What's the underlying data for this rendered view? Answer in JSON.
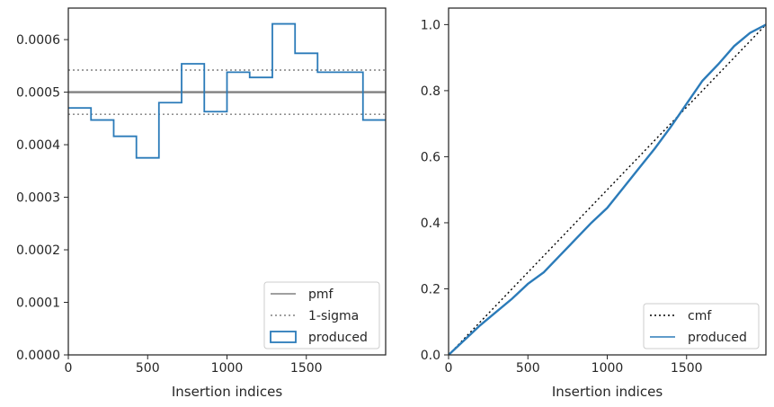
{
  "chart_data": [
    {
      "type": "line",
      "subtype": "histogram-step",
      "xlabel": "Insertion indices",
      "ylabel": "",
      "xlim": [
        0,
        2000
      ],
      "ylim": [
        0,
        0.00066
      ],
      "xticks": [
        0,
        500,
        1000,
        1500
      ],
      "xtick_labels": [
        "0",
        "500",
        "1000",
        "1500"
      ],
      "yticks": [
        0,
        0.0001,
        0.0002,
        0.0003,
        0.0004,
        0.0005,
        0.0006
      ],
      "ytick_labels": [
        "0.0000",
        "0.0001",
        "0.0002",
        "0.0003",
        "0.0004",
        "0.0005",
        "0.0006"
      ],
      "grid": false,
      "legend_position": "lower-right",
      "series": [
        {
          "name": "pmf",
          "style": "solid",
          "color": "#808080",
          "x": [
            0,
            2000
          ],
          "y": [
            0.0005,
            0.0005
          ]
        },
        {
          "name": "1-sigma",
          "style": "dotted",
          "color": "#808080",
          "lines": [
            0.000458,
            0.000542
          ]
        },
        {
          "name": "produced",
          "style": "step",
          "color": "#2b7bb9",
          "bin_edges": [
            0,
            143,
            286,
            429,
            571,
            714,
            857,
            1000,
            1143,
            1286,
            1429,
            1571,
            1714,
            1857,
            2000
          ],
          "values": [
            0.00047,
            0.000447,
            0.000416,
            0.000375,
            0.00048,
            0.000554,
            0.000463,
            0.000538,
            0.000528,
            0.00063,
            0.000574,
            0.000538,
            0.000538,
            0.000447
          ]
        }
      ]
    },
    {
      "type": "line",
      "xlabel": "Insertion indices",
      "ylabel": "",
      "xlim": [
        0,
        2000
      ],
      "ylim": [
        0,
        1.05
      ],
      "xticks": [
        0,
        500,
        1000,
        1500
      ],
      "xtick_labels": [
        "0",
        "500",
        "1000",
        "1500"
      ],
      "yticks": [
        0,
        0.2,
        0.4,
        0.6,
        0.8,
        1.0
      ],
      "ytick_labels": [
        "0.0",
        "0.2",
        "0.4",
        "0.6",
        "0.8",
        "1.0"
      ],
      "grid": false,
      "legend_position": "lower-right",
      "series": [
        {
          "name": "cmf",
          "style": "dotted",
          "color": "#000000",
          "x": [
            0,
            2000
          ],
          "y": [
            0,
            1
          ]
        },
        {
          "name": "produced",
          "style": "solid",
          "color": "#2b7bb9",
          "x": [
            0,
            100,
            200,
            300,
            400,
            500,
            600,
            700,
            800,
            900,
            1000,
            1100,
            1200,
            1300,
            1400,
            1500,
            1600,
            1700,
            1800,
            1900,
            2000
          ],
          "y": [
            0,
            0.045,
            0.09,
            0.13,
            0.17,
            0.215,
            0.25,
            0.3,
            0.35,
            0.4,
            0.445,
            0.505,
            0.565,
            0.625,
            0.69,
            0.76,
            0.83,
            0.88,
            0.935,
            0.975,
            1.0
          ]
        }
      ]
    }
  ]
}
